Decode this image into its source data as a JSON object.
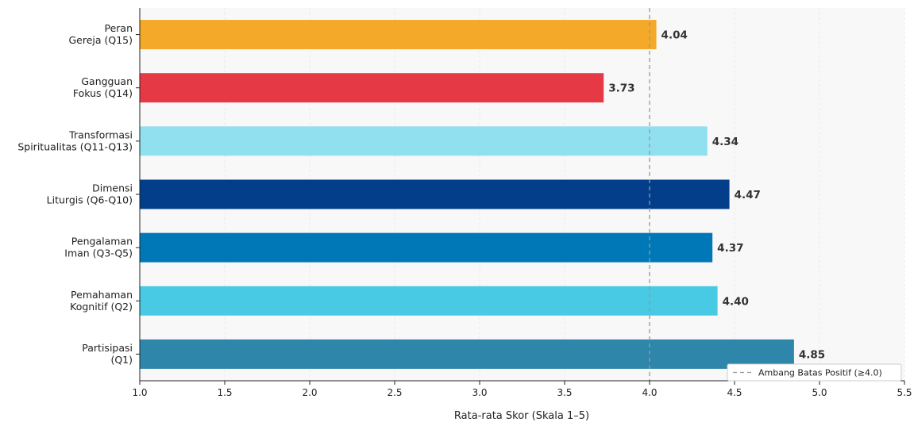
{
  "chart_data": {
    "type": "bar",
    "orientation": "horizontal",
    "categories": [
      [
        "Partisipasi",
        "(Q1)"
      ],
      [
        "Pemahaman",
        "Kognitif (Q2)"
      ],
      [
        "Pengalaman",
        "Iman (Q3-Q5)"
      ],
      [
        "Dimensi",
        "Liturgis (Q6-Q10)"
      ],
      [
        "Transformasi",
        "Spiritualitas (Q11-Q13)"
      ],
      [
        "Gangguan",
        "Fokus (Q14)"
      ],
      [
        "Peran",
        "Gereja (Q15)"
      ]
    ],
    "values": [
      4.85,
      4.4,
      4.37,
      4.47,
      4.34,
      3.73,
      4.04
    ],
    "value_labels": [
      "4.85",
      "4.40",
      "4.37",
      "4.47",
      "4.34",
      "3.73",
      "4.04"
    ],
    "colors": [
      "#2e86ab",
      "#48cae4",
      "#0077b6",
      "#023e8a",
      "#90e0ef",
      "#e63946",
      "#f4a929"
    ],
    "xlabel": "Rata-rata Skor (Skala 1–5)",
    "xlim": [
      1.0,
      5.5
    ],
    "xticks": [
      "1.0",
      "1.5",
      "2.0",
      "2.5",
      "3.0",
      "3.5",
      "4.0",
      "4.5",
      "5.0",
      "5.5"
    ],
    "threshold": {
      "value": 4.0,
      "label": "Ambang Batas Positif (≥4.0)",
      "color": "#999999",
      "style": "dashed"
    },
    "legend_position": "lower-right",
    "grid": "vertical, faint",
    "background": "#f8f8f8"
  }
}
